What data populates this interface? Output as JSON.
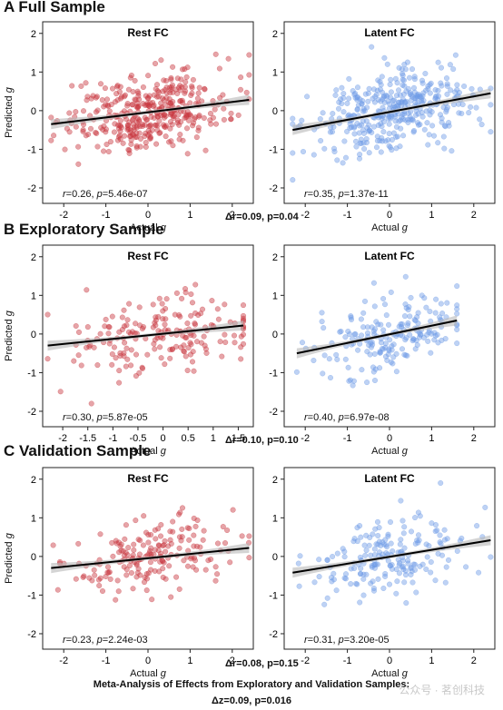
{
  "colors": {
    "rest_point": "#c8363e",
    "latent_point": "#6e9be6",
    "fit_line": "#000000",
    "ci_band": "#b8b8b8"
  },
  "sections": [
    {
      "title": "A  Full Sample",
      "delta": {
        "label": "Δr=0.09, p=0.04"
      },
      "panels": [
        {
          "heading": "Rest FC",
          "annotation": "r=0.26, p=5.46e-07",
          "ylabel": "Predicted g",
          "xlabel": "Actual g"
        },
        {
          "heading": "Latent FC",
          "annotation": "r=0.35, p=1.37e-11",
          "ylabel": "",
          "xlabel": "Actual g"
        }
      ]
    },
    {
      "title": "B  Exploratory Sample",
      "delta": {
        "label": "Δr=0.10, p=0.10"
      },
      "panels": [
        {
          "heading": "Rest FC",
          "annotation": "r=0.30, p=5.87e-05",
          "ylabel": "Predicted g",
          "xlabel": "Actual g"
        },
        {
          "heading": "Latent FC",
          "annotation": "r=0.40, p=6.97e-08",
          "ylabel": "",
          "xlabel": "Actual g"
        }
      ]
    },
    {
      "title": "C  Validation Sample",
      "delta": {
        "label": "Δr=0.08, p=0.15"
      },
      "panels": [
        {
          "heading": "Rest FC",
          "annotation": "r=0.23, p=2.24e-03",
          "ylabel": "Predicted g",
          "xlabel": "Actual g"
        },
        {
          "heading": "Latent FC",
          "annotation": "r=0.31, p=3.20e-05",
          "ylabel": "",
          "xlabel": "Actual g"
        }
      ]
    }
  ],
  "meta": {
    "title": "Meta-Analysis of Effects from Exploratory and Validation Samples:",
    "value": "Δz=0.09, p=0.016"
  },
  "watermark": "公众号 · 茗创科技",
  "chart_data": [
    {
      "type": "scatter",
      "section": "A",
      "title": "Rest FC",
      "xlabel": "Actual g",
      "ylabel": "Predicted g",
      "xlim": [
        -2.5,
        2.5
      ],
      "ylim": [
        -2.4,
        2.3
      ],
      "xticks": [
        -2,
        -1,
        0,
        1,
        2
      ],
      "yticks": [
        -2,
        -1,
        0,
        1,
        2
      ],
      "fit": {
        "x": [
          -2.3,
          2.4
        ],
        "y": [
          -0.35,
          0.28
        ]
      },
      "n_points": 380,
      "point_color": "#c8363e",
      "annotation": "r=0.26, p=5.46e-07"
    },
    {
      "type": "scatter",
      "section": "A",
      "title": "Latent FC",
      "xlabel": "Actual g",
      "ylabel": "",
      "xlim": [
        -2.5,
        2.5
      ],
      "ylim": [
        -2.4,
        2.3
      ],
      "xticks": [
        -2,
        -1,
        0,
        1,
        2
      ],
      "yticks": [
        -2,
        -1,
        0,
        1,
        2
      ],
      "fit": {
        "x": [
          -2.3,
          2.4
        ],
        "y": [
          -0.5,
          0.45
        ]
      },
      "n_points": 380,
      "point_color": "#6e9be6",
      "annotation": "r=0.35, p=1.37e-11"
    },
    {
      "type": "scatter",
      "section": "B",
      "title": "Rest FC",
      "xlabel": "Actual g",
      "ylabel": "Predicted g",
      "xlim": [
        -2.4,
        1.8
      ],
      "ylim": [
        -2.4,
        2.3
      ],
      "xticks": [
        -2,
        -1.5,
        -1,
        -0.5,
        0,
        0.5,
        1,
        1.5
      ],
      "yticks": [
        -2,
        -1,
        0,
        1,
        2
      ],
      "fit": {
        "x": [
          -2.3,
          1.6
        ],
        "y": [
          -0.3,
          0.22
        ]
      },
      "n_points": 190,
      "point_color": "#c8363e",
      "annotation": "r=0.30, p=5.87e-05"
    },
    {
      "type": "scatter",
      "section": "B",
      "title": "Latent FC",
      "xlabel": "Actual g",
      "ylabel": "",
      "xlim": [
        -2.5,
        2.5
      ],
      "ylim": [
        -2.4,
        2.3
      ],
      "xticks": [
        -2,
        -1,
        0,
        1,
        2
      ],
      "yticks": [
        -2,
        -1,
        0,
        1,
        2
      ],
      "fit": {
        "x": [
          -2.2,
          1.6
        ],
        "y": [
          -0.5,
          0.35
        ]
      },
      "n_points": 190,
      "point_color": "#6e9be6",
      "annotation": "r=0.40, p=6.97e-08"
    },
    {
      "type": "scatter",
      "section": "C",
      "title": "Rest FC",
      "xlabel": "Actual g",
      "ylabel": "Predicted g",
      "xlim": [
        -2.5,
        2.5
      ],
      "ylim": [
        -2.4,
        2.3
      ],
      "xticks": [
        -2,
        -1,
        0,
        1,
        2
      ],
      "yticks": [
        -2,
        -1,
        0,
        1,
        2
      ],
      "fit": {
        "x": [
          -2.3,
          2.4
        ],
        "y": [
          -0.3,
          0.22
        ]
      },
      "n_points": 190,
      "point_color": "#c8363e",
      "annotation": "r=0.23, p=2.24e-03"
    },
    {
      "type": "scatter",
      "section": "C",
      "title": "Latent FC",
      "xlabel": "Actual g",
      "ylabel": "",
      "xlim": [
        -2.5,
        2.5
      ],
      "ylim": [
        -2.4,
        2.3
      ],
      "xticks": [
        -2,
        -1,
        0,
        1,
        2
      ],
      "yticks": [
        -2,
        -1,
        0,
        1,
        2
      ],
      "fit": {
        "x": [
          -2.3,
          2.4
        ],
        "y": [
          -0.42,
          0.42
        ]
      },
      "n_points": 190,
      "point_color": "#6e9be6",
      "annotation": "r=0.31, p=3.20e-05"
    }
  ]
}
